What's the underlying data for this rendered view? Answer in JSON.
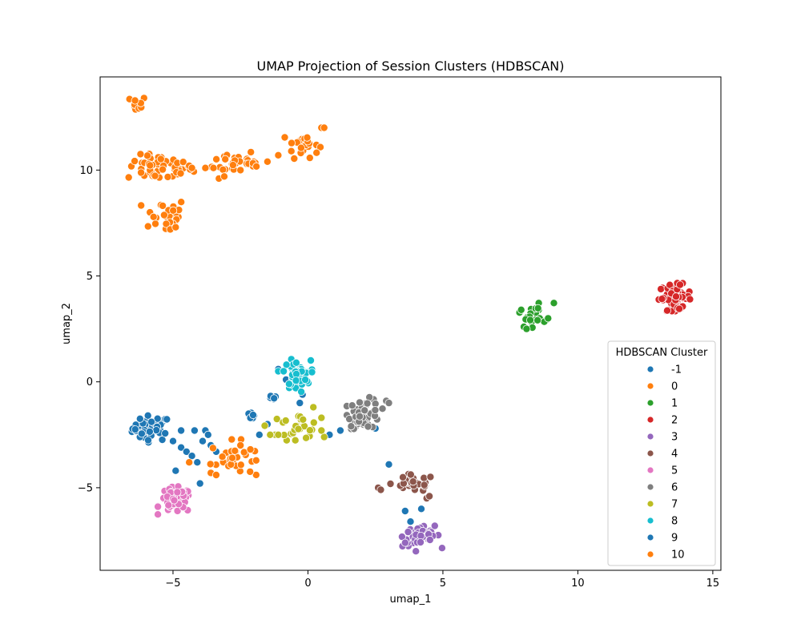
{
  "chart_data": {
    "type": "scatter",
    "title": "UMAP Projection of Session Clusters (HDBSCAN)",
    "xlabel": "umap_1",
    "ylabel": "umap_2",
    "xlim": [
      -7.7,
      15.3
    ],
    "ylim": [
      -8.9,
      14.4
    ],
    "xticks": [
      -5,
      0,
      5,
      10,
      15
    ],
    "yticks": [
      -5,
      0,
      5,
      10
    ],
    "xtick_labels": [
      "−5",
      "0",
      "5",
      "10",
      "15"
    ],
    "ytick_labels": [
      "−5",
      "0",
      "5",
      "10"
    ],
    "grid": false,
    "legend": {
      "title": "HDBSCAN Cluster",
      "placement": "lower-right"
    },
    "series": [
      {
        "name": "-1",
        "color": "#1f77b4",
        "clusters": [
          {
            "center": [
              -5.8,
              -2.2
            ],
            "spread": [
              0.35,
              0.3
            ],
            "n": 45
          },
          {
            "center": [
              -0.5,
              0.3
            ],
            "spread": [
              0.2,
              0.25
            ],
            "n": 4
          }
        ],
        "points": [
          [
            -5.0,
            -2.8
          ],
          [
            -4.7,
            -3.1
          ],
          [
            -4.5,
            -3.3
          ],
          [
            -4.3,
            -3.5
          ],
          [
            -4.7,
            -2.3
          ],
          [
            -4.2,
            -2.3
          ],
          [
            -3.8,
            -2.3
          ],
          [
            -3.9,
            -2.8
          ],
          [
            -3.6,
            -3.0
          ],
          [
            -3.7,
            -2.5
          ],
          [
            -3.4,
            -3.3
          ],
          [
            -4.9,
            -4.2
          ],
          [
            -4.0,
            -4.8
          ],
          [
            -4.1,
            -3.8
          ],
          [
            -2.0,
            -1.6
          ],
          [
            -1.8,
            -2.5
          ],
          [
            -1.5,
            -2.0
          ],
          [
            -1.2,
            -0.7
          ],
          [
            -1.1,
            0.6
          ],
          [
            -0.3,
            -1.0
          ],
          [
            -0.2,
            -0.6
          ],
          [
            0.6,
            -2.6
          ],
          [
            0.8,
            -2.5
          ],
          [
            1.2,
            -2.3
          ],
          [
            1.7,
            -2.1
          ],
          [
            3.0,
            -3.9
          ],
          [
            3.6,
            -6.1
          ],
          [
            4.2,
            -6.0
          ],
          [
            3.8,
            -6.6
          ],
          [
            2.5,
            -2.2
          ]
        ]
      },
      {
        "name": "0",
        "color": "#ff7f0e",
        "clusters": [
          {
            "center": [
              -6.3,
              13.1
            ],
            "spread": [
              0.15,
              0.2
            ],
            "n": 10
          },
          {
            "center": [
              -5.5,
              10.1
            ],
            "spread": [
              0.6,
              0.3
            ],
            "n": 55
          },
          {
            "center": [
              -5.3,
              7.9
            ],
            "spread": [
              0.4,
              0.4
            ],
            "n": 30
          },
          {
            "center": [
              -2.7,
              10.4
            ],
            "spread": [
              0.4,
              0.3
            ],
            "n": 25
          },
          {
            "center": [
              -0.2,
              11.2
            ],
            "spread": [
              0.3,
              0.3
            ],
            "n": 25
          },
          {
            "center": [
              -2.8,
              -3.6
            ],
            "spread": [
              0.4,
              0.4
            ],
            "n": 32
          }
        ],
        "points": [
          [
            0.5,
            12.0
          ],
          [
            0.6,
            12.0
          ],
          [
            -4.4,
            10.2
          ],
          [
            -4.3,
            10.1
          ],
          [
            -3.5,
            10.1
          ],
          [
            -3.8,
            10.1
          ],
          [
            -3.3,
            9.6
          ],
          [
            -3.1,
            9.7
          ],
          [
            -2.2,
            10.3
          ],
          [
            -2.0,
            10.4
          ],
          [
            -1.5,
            10.4
          ],
          [
            -1.1,
            10.7
          ],
          [
            -5.1,
            7.2
          ],
          [
            -4.9,
            7.3
          ],
          [
            -4.4,
            -3.8
          ],
          [
            -3.6,
            -4.3
          ],
          [
            -3.4,
            -4.4
          ],
          [
            -2.5,
            -3.0
          ]
        ]
      },
      {
        "name": "1",
        "color": "#2ca02c",
        "clusters": [
          {
            "center": [
              8.5,
              3.2
            ],
            "spread": [
              0.3,
              0.3
            ],
            "n": 22
          }
        ],
        "points": [
          [
            8.0,
            2.6
          ],
          [
            8.1,
            2.5
          ],
          [
            8.9,
            3.0
          ],
          [
            7.9,
            3.4
          ]
        ]
      },
      {
        "name": "2",
        "color": "#d62728",
        "clusters": [
          {
            "center": [
              13.6,
              4.0
            ],
            "spread": [
              0.3,
              0.3
            ],
            "n": 65
          }
        ],
        "points": []
      },
      {
        "name": "3",
        "color": "#9467bd",
        "clusters": [
          {
            "center": [
              4.2,
              -7.3
            ],
            "spread": [
              0.35,
              0.25
            ],
            "n": 45
          }
        ],
        "points": [
          [
            3.6,
            -7.6
          ],
          [
            4.7,
            -6.8
          ],
          [
            4.0,
            -8.0
          ]
        ]
      },
      {
        "name": "4",
        "color": "#8c564b",
        "clusters": [
          {
            "center": [
              3.9,
              -4.8
            ],
            "spread": [
              0.4,
              0.2
            ],
            "n": 32
          }
        ],
        "points": [
          [
            2.6,
            -5.0
          ],
          [
            2.7,
            -5.1
          ],
          [
            4.4,
            -5.5
          ],
          [
            4.5,
            -5.4
          ]
        ]
      },
      {
        "name": "5",
        "color": "#e377c2",
        "clusters": [
          {
            "center": [
              -4.9,
              -5.6
            ],
            "spread": [
              0.3,
              0.3
            ],
            "n": 60
          }
        ],
        "points": []
      },
      {
        "name": "6",
        "color": "#7f7f7f",
        "clusters": [
          {
            "center": [
              2.1,
              -1.5
            ],
            "spread": [
              0.3,
              0.35
            ],
            "n": 55
          }
        ],
        "points": [
          [
            2.9,
            -0.9
          ],
          [
            3.0,
            -1.0
          ],
          [
            1.6,
            -2.1
          ]
        ]
      },
      {
        "name": "7",
        "color": "#bcbd22",
        "clusters": [
          {
            "center": [
              -0.5,
              -2.1
            ],
            "spread": [
              0.5,
              0.3
            ],
            "n": 30
          }
        ],
        "points": [
          [
            -1.4,
            -2.5
          ],
          [
            -1.1,
            -2.5
          ],
          [
            0.5,
            -1.7
          ],
          [
            0.2,
            -1.2
          ],
          [
            0.5,
            -2.3
          ]
        ]
      },
      {
        "name": "8",
        "color": "#17becf",
        "clusters": [
          {
            "center": [
              -0.4,
              0.3
            ],
            "spread": [
              0.25,
              0.35
            ],
            "n": 40
          }
        ],
        "points": [
          [
            -1.1,
            0.5
          ],
          [
            -0.9,
            0.5
          ],
          [
            -0.1,
            0.1
          ],
          [
            -0.7,
            -0.1
          ]
        ]
      },
      {
        "name": "9",
        "color": "#1f77b4",
        "clusters": [
          {
            "center": [
              -2.1,
              -1.6
            ],
            "spread": [
              0.1,
              0.1
            ],
            "n": 5
          },
          {
            "center": [
              -1.4,
              -0.8
            ],
            "spread": [
              0.1,
              0.08
            ],
            "n": 5
          }
        ],
        "points": []
      },
      {
        "name": "10",
        "color": "#ff7f0e",
        "clusters": [
          {
            "center": [
              -2.0,
              10.2
            ],
            "spread": [
              0.1,
              0.08
            ],
            "n": 4
          }
        ],
        "points": []
      }
    ]
  }
}
